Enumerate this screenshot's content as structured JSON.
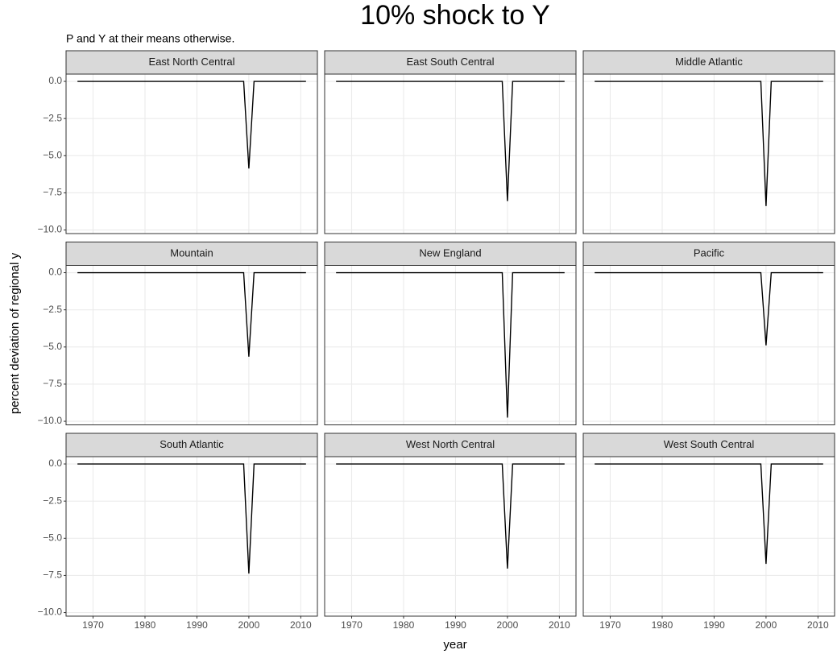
{
  "chart_data": {
    "type": "line",
    "facets": true,
    "title": "10% shock to Y",
    "subtitle": "P and Y at their means otherwise.",
    "xlabel": "year",
    "ylabel": "percent deviation of regional y",
    "x": [
      1967,
      1999,
      2000,
      2001,
      2011
    ],
    "xlim": [
      1964.8,
      2013.2
    ],
    "xticks": [
      1970,
      1980,
      1990,
      2000,
      2010
    ],
    "ylim": [
      -10.24,
      0.49
    ],
    "yticks": [
      {
        "value": 0,
        "label": "0.0"
      },
      {
        "value": -2.5,
        "label": "−2.5"
      },
      {
        "value": -5,
        "label": "−5.0"
      },
      {
        "value": -7.5,
        "label": "−7.5"
      },
      {
        "value": -10,
        "label": "−10.0"
      }
    ],
    "grid": true,
    "series": [
      {
        "name": "East North Central",
        "color": "#000000",
        "values": [
          0,
          0,
          -5.86,
          0,
          0
        ]
      },
      {
        "name": "East South Central",
        "color": "#000000",
        "values": [
          0,
          0,
          -8.06,
          0,
          0
        ]
      },
      {
        "name": "Middle Atlantic",
        "color": "#000000",
        "values": [
          0,
          0,
          -8.39,
          0,
          0
        ]
      },
      {
        "name": "Mountain",
        "color": "#000000",
        "values": [
          0,
          0,
          -5.65,
          0,
          0
        ]
      },
      {
        "name": "New England",
        "color": "#000000",
        "values": [
          0,
          0,
          -9.75,
          0,
          0
        ]
      },
      {
        "name": "Pacific",
        "color": "#000000",
        "values": [
          0,
          0,
          -4.89,
          0,
          0
        ]
      },
      {
        "name": "South Atlantic",
        "color": "#000000",
        "values": [
          0,
          0,
          -7.37,
          0,
          0
        ]
      },
      {
        "name": "West North Central",
        "color": "#000000",
        "values": [
          0,
          0,
          -7.04,
          0,
          0
        ]
      },
      {
        "name": "West South Central",
        "color": "#000000",
        "values": [
          0,
          0,
          -6.72,
          0,
          0
        ]
      }
    ]
  }
}
